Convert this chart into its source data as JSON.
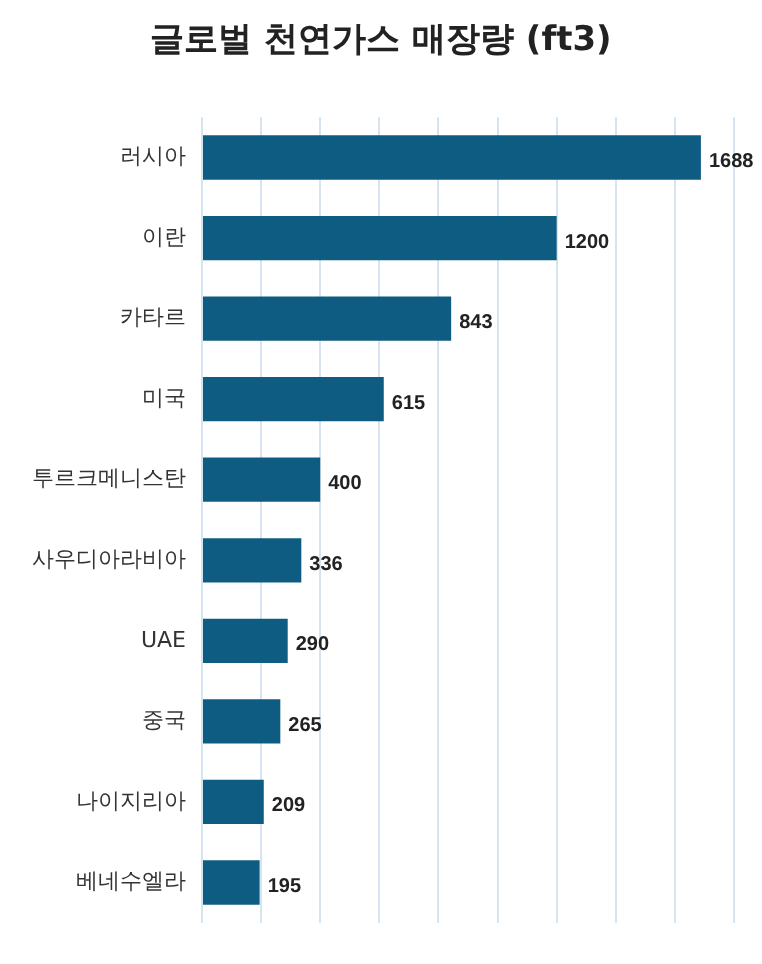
{
  "chart_data": {
    "type": "bar",
    "orientation": "horizontal",
    "title": "글로벌 천연가스 매장량 (ft3)",
    "categories": [
      "러시아",
      "이란",
      "카타르",
      "미국",
      "투르크메니스탄",
      "사우디아라비아",
      "UAE",
      "중국",
      "나이지리아",
      "베네수엘라"
    ],
    "values": [
      1688,
      1200,
      843,
      615,
      400,
      336,
      290,
      265,
      209,
      195
    ],
    "color": "#0f5c82",
    "xlim": [
      0,
      1800
    ],
    "xticks": [
      {
        "value": 0,
        "label": null
      },
      {
        "value": 200,
        "label": null
      },
      {
        "value": 400,
        "label": null
      },
      {
        "value": 600,
        "label": null
      },
      {
        "value": 800,
        "label": null
      },
      {
        "value": 1000,
        "label": null
      },
      {
        "value": 1200,
        "label": null
      },
      {
        "value": 1400,
        "label": null
      },
      {
        "value": 1600,
        "label": null
      },
      {
        "value": 1800,
        "label": null
      }
    ],
    "tick_labels": "y",
    "grid": "x",
    "data_labels": true,
    "legend": false
  }
}
